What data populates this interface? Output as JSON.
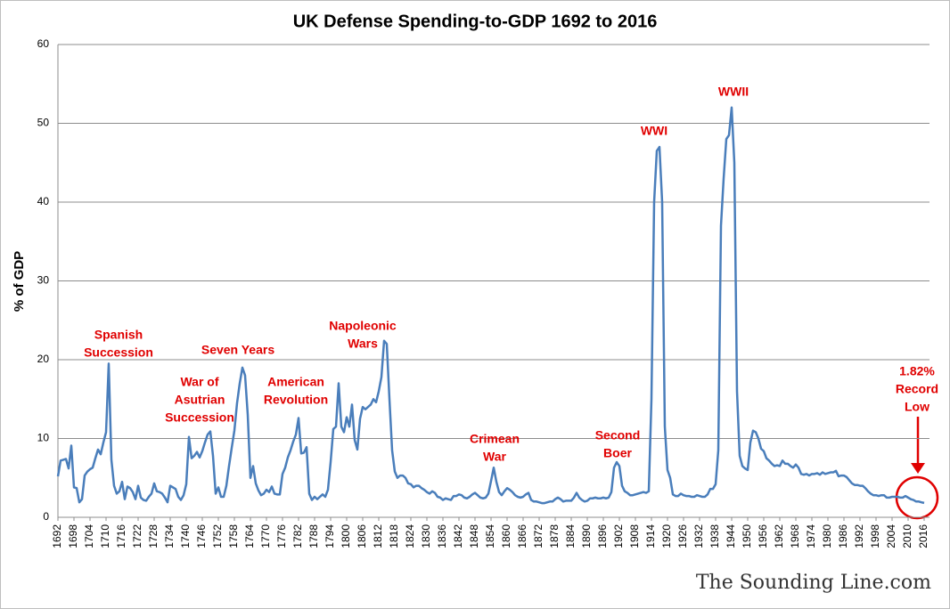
{
  "chart_data": {
    "type": "line",
    "title": "UK Defense Spending-to-GDP 1692 to 2016",
    "y_label": "% of GDP",
    "x": [
      1692,
      1693,
      1694,
      1695,
      1696,
      1697,
      1698,
      1699,
      1700,
      1701,
      1702,
      1703,
      1704,
      1705,
      1706,
      1707,
      1708,
      1709,
      1710,
      1711,
      1712,
      1713,
      1714,
      1715,
      1716,
      1717,
      1718,
      1719,
      1720,
      1721,
      1722,
      1723,
      1724,
      1725,
      1726,
      1727,
      1728,
      1729,
      1730,
      1731,
      1732,
      1733,
      1734,
      1735,
      1736,
      1737,
      1738,
      1739,
      1740,
      1741,
      1742,
      1743,
      1744,
      1745,
      1746,
      1747,
      1748,
      1749,
      1750,
      1751,
      1752,
      1753,
      1754,
      1755,
      1756,
      1757,
      1758,
      1759,
      1760,
      1761,
      1762,
      1763,
      1764,
      1765,
      1766,
      1767,
      1768,
      1769,
      1770,
      1771,
      1772,
      1773,
      1774,
      1775,
      1776,
      1777,
      1778,
      1779,
      1780,
      1781,
      1782,
      1783,
      1784,
      1785,
      1786,
      1787,
      1788,
      1789,
      1790,
      1791,
      1792,
      1793,
      1794,
      1795,
      1796,
      1797,
      1798,
      1799,
      1800,
      1801,
      1802,
      1803,
      1804,
      1805,
      1806,
      1807,
      1808,
      1809,
      1810,
      1811,
      1812,
      1813,
      1814,
      1815,
      1816,
      1817,
      1818,
      1819,
      1820,
      1821,
      1822,
      1823,
      1824,
      1825,
      1826,
      1827,
      1828,
      1829,
      1830,
      1831,
      1832,
      1833,
      1834,
      1835,
      1836,
      1837,
      1838,
      1839,
      1840,
      1841,
      1842,
      1843,
      1844,
      1845,
      1846,
      1847,
      1848,
      1849,
      1850,
      1851,
      1852,
      1853,
      1854,
      1855,
      1856,
      1857,
      1858,
      1859,
      1860,
      1861,
      1862,
      1863,
      1864,
      1865,
      1866,
      1867,
      1868,
      1869,
      1870,
      1871,
      1872,
      1873,
      1874,
      1875,
      1876,
      1877,
      1878,
      1879,
      1880,
      1881,
      1882,
      1883,
      1884,
      1885,
      1886,
      1887,
      1888,
      1889,
      1890,
      1891,
      1892,
      1893,
      1894,
      1895,
      1896,
      1897,
      1898,
      1899,
      1900,
      1901,
      1902,
      1903,
      1904,
      1905,
      1906,
      1907,
      1908,
      1909,
      1910,
      1911,
      1912,
      1913,
      1914,
      1915,
      1916,
      1917,
      1918,
      1919,
      1920,
      1921,
      1922,
      1923,
      1924,
      1925,
      1926,
      1927,
      1928,
      1929,
      1930,
      1931,
      1932,
      1933,
      1934,
      1935,
      1936,
      1937,
      1938,
      1939,
      1940,
      1941,
      1942,
      1943,
      1944,
      1945,
      1946,
      1947,
      1948,
      1949,
      1950,
      1951,
      1952,
      1953,
      1954,
      1955,
      1956,
      1957,
      1958,
      1959,
      1960,
      1961,
      1962,
      1963,
      1964,
      1965,
      1966,
      1967,
      1968,
      1969,
      1970,
      1971,
      1972,
      1973,
      1974,
      1975,
      1976,
      1977,
      1978,
      1979,
      1980,
      1981,
      1982,
      1983,
      1984,
      1985,
      1986,
      1987,
      1988,
      1989,
      1990,
      1991,
      1992,
      1993,
      1994,
      1995,
      1996,
      1997,
      1998,
      1999,
      2000,
      2001,
      2002,
      2003,
      2004,
      2005,
      2006,
      2007,
      2008,
      2009,
      2010,
      2011,
      2012,
      2013,
      2014,
      2015,
      2016
    ],
    "series": [
      {
        "name": "% of GDP",
        "color": "#4a7ebb",
        "values": [
          5.2,
          7.2,
          7.3,
          7.4,
          6.2,
          9.1,
          3.8,
          3.7,
          1.9,
          2.3,
          5.3,
          5.8,
          6.1,
          6.3,
          7.5,
          8.6,
          8.0,
          9.5,
          10.8,
          19.5,
          7.3,
          4.0,
          3.0,
          3.3,
          4.5,
          2.3,
          3.9,
          3.7,
          3.2,
          2.3,
          4.0,
          2.5,
          2.2,
          2.1,
          2.6,
          3.0,
          4.3,
          3.3,
          3.2,
          3.0,
          2.5,
          1.9,
          4.0,
          3.8,
          3.6,
          2.6,
          2.2,
          2.8,
          4.2,
          10.2,
          7.5,
          7.8,
          8.3,
          7.6,
          8.4,
          9.5,
          10.5,
          10.9,
          7.8,
          3.0,
          3.8,
          2.6,
          2.6,
          4.0,
          6.5,
          8.8,
          11.0,
          14.5,
          17.0,
          19.0,
          18.0,
          13.0,
          5.0,
          6.5,
          4.3,
          3.4,
          2.8,
          3.0,
          3.5,
          3.2,
          3.9,
          3.0,
          2.9,
          2.9,
          5.5,
          6.3,
          7.6,
          8.5,
          9.6,
          10.5,
          12.6,
          8.1,
          8.2,
          8.9,
          3.0,
          2.2,
          2.6,
          2.3,
          2.6,
          2.9,
          2.6,
          3.5,
          7.0,
          11.2,
          11.5,
          17.0,
          11.5,
          10.8,
          12.7,
          11.5,
          14.3,
          9.8,
          8.6,
          12.5,
          14.0,
          13.7,
          14.0,
          14.3,
          15.0,
          14.6,
          16.0,
          17.8,
          22.4,
          22.0,
          15.0,
          8.5,
          5.8,
          5.0,
          5.3,
          5.3,
          5.0,
          4.3,
          4.2,
          3.8,
          4.0,
          4.0,
          3.7,
          3.5,
          3.2,
          3.0,
          3.3,
          3.1,
          2.6,
          2.5,
          2.2,
          2.4,
          2.3,
          2.2,
          2.7,
          2.7,
          2.9,
          2.8,
          2.5,
          2.4,
          2.6,
          2.9,
          3.1,
          2.8,
          2.5,
          2.4,
          2.5,
          3.0,
          4.6,
          6.3,
          4.5,
          3.2,
          2.8,
          3.3,
          3.7,
          3.5,
          3.2,
          2.8,
          2.6,
          2.5,
          2.6,
          2.9,
          3.1,
          2.2,
          2.0,
          2.0,
          1.9,
          1.8,
          1.8,
          1.9,
          2.0,
          2.0,
          2.3,
          2.5,
          2.3,
          2.0,
          2.1,
          2.1,
          2.1,
          2.5,
          3.1,
          2.5,
          2.2,
          2.0,
          2.1,
          2.4,
          2.4,
          2.5,
          2.4,
          2.4,
          2.5,
          2.4,
          2.5,
          3.2,
          6.3,
          7.0,
          6.5,
          4.0,
          3.3,
          3.1,
          2.8,
          2.8,
          2.9,
          3.0,
          3.1,
          3.2,
          3.1,
          3.3,
          15.0,
          40.0,
          46.5,
          47.0,
          40.0,
          11.5,
          6.0,
          5.0,
          2.9,
          2.7,
          2.7,
          3.0,
          2.8,
          2.7,
          2.7,
          2.6,
          2.6,
          2.8,
          2.7,
          2.6,
          2.6,
          2.9,
          3.6,
          3.6,
          4.2,
          8.5,
          37.0,
          43.0,
          48.0,
          48.5,
          52.0,
          45.0,
          16.0,
          7.8,
          6.5,
          6.2,
          6.0,
          9.5,
          11.0,
          10.8,
          10.0,
          8.7,
          8.4,
          7.5,
          7.2,
          6.8,
          6.5,
          6.6,
          6.5,
          7.2,
          6.8,
          6.8,
          6.5,
          6.3,
          6.7,
          6.3,
          5.5,
          5.4,
          5.5,
          5.3,
          5.5,
          5.5,
          5.6,
          5.4,
          5.7,
          5.5,
          5.6,
          5.7,
          5.7,
          5.9,
          5.2,
          5.3,
          5.3,
          5.1,
          4.7,
          4.3,
          4.1,
          4.1,
          4.0,
          4.0,
          3.7,
          3.3,
          3.0,
          2.8,
          2.8,
          2.7,
          2.8,
          2.8,
          2.5,
          2.5,
          2.6,
          2.6,
          2.6,
          2.5,
          2.5,
          2.7,
          2.5,
          2.3,
          2.2,
          2.0,
          2.0,
          1.9,
          1.82
        ]
      }
    ],
    "xlim": [
      1692,
      2018
    ],
    "xticks": [
      1692,
      1698,
      1704,
      1710,
      1716,
      1722,
      1728,
      1734,
      1740,
      1746,
      1752,
      1758,
      1764,
      1770,
      1776,
      1782,
      1788,
      1794,
      1800,
      1806,
      1812,
      1818,
      1824,
      1830,
      1836,
      1842,
      1848,
      1854,
      1860,
      1866,
      1872,
      1878,
      1884,
      1890,
      1896,
      1902,
      1908,
      1914,
      1920,
      1926,
      1932,
      1938,
      1944,
      1950,
      1956,
      1962,
      1968,
      1974,
      1980,
      1986,
      1992,
      1998,
      2004,
      2010,
      2016
    ],
    "ylim": [
      0,
      60
    ],
    "yticks": [
      0,
      10,
      20,
      30,
      40,
      50,
      60
    ],
    "grid": true,
    "annotations": [
      {
        "lines": [
          "Spanish",
          "Succession"
        ]
      },
      {
        "lines": [
          "Seven Years"
        ]
      },
      {
        "lines": [
          "War of",
          "Asutrian",
          "Succession"
        ]
      },
      {
        "lines": [
          "American",
          "Revolution"
        ]
      },
      {
        "lines": [
          "Napoleonic",
          "Wars"
        ]
      },
      {
        "lines": [
          "Crimean",
          "War"
        ]
      },
      {
        "lines": [
          "Second",
          "Boer"
        ]
      },
      {
        "lines": [
          "WWI"
        ]
      },
      {
        "lines": [
          "WWII"
        ]
      },
      {
        "lines": [
          "1.82%",
          "Record",
          "Low"
        ]
      }
    ],
    "source": "The Sounding Line.com"
  }
}
